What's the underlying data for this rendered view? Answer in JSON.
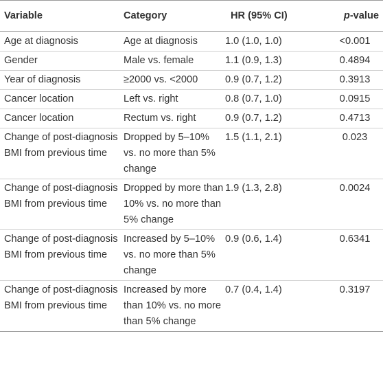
{
  "headers": {
    "variable": "Variable",
    "category": "Category",
    "hr": "HR (95% CI)",
    "pvalue_italic": "p",
    "pvalue_rest": "-value"
  },
  "rows": [
    {
      "variable": "Age at diagnosis",
      "category": "Age at diagnosis",
      "hr": "1.0 (1.0, 1.0)",
      "p": "<0.001"
    },
    {
      "variable": "Gender",
      "category": "Male vs. female",
      "hr": "1.1 (0.9, 1.3)",
      "p": "0.4894"
    },
    {
      "variable": "Year of diagnosis",
      "category": "≥2000 vs. <2000",
      "hr": "0.9 (0.7, 1.2)",
      "p": "0.3913"
    },
    {
      "variable": "Cancer location",
      "category": "Left vs. right",
      "hr": "0.8 (0.7, 1.0)",
      "p": "0.0915"
    },
    {
      "variable": "Cancer location",
      "category": "Rectum vs. right",
      "hr": "0.9 (0.7, 1.2)",
      "p": "0.4713"
    },
    {
      "variable": "Change of post-diagnosis BMI from previous time",
      "category": "Dropped by 5–10% vs. no more than 5% change",
      "hr": "1.5 (1.1, 2.1)",
      "p": "0.023"
    },
    {
      "variable": "Change of post-diagnosis BMI from previous time",
      "category": "Dropped by more than 10% vs. no more than 5% change",
      "hr": "1.9 (1.3, 2.8)",
      "p": "0.0024"
    },
    {
      "variable": "Change of post-diagnosis BMI from previous time",
      "category": "Increased by 5–10% vs. no more than 5% change",
      "hr": "0.9 (0.6, 1.4)",
      "p": "0.6341"
    },
    {
      "variable": "Change of post-diagnosis BMI from previous time",
      "category": "Increased by more than 10% vs. no more than 5% change",
      "hr": "0.7 (0.4, 1.4)",
      "p": "0.3197"
    }
  ]
}
